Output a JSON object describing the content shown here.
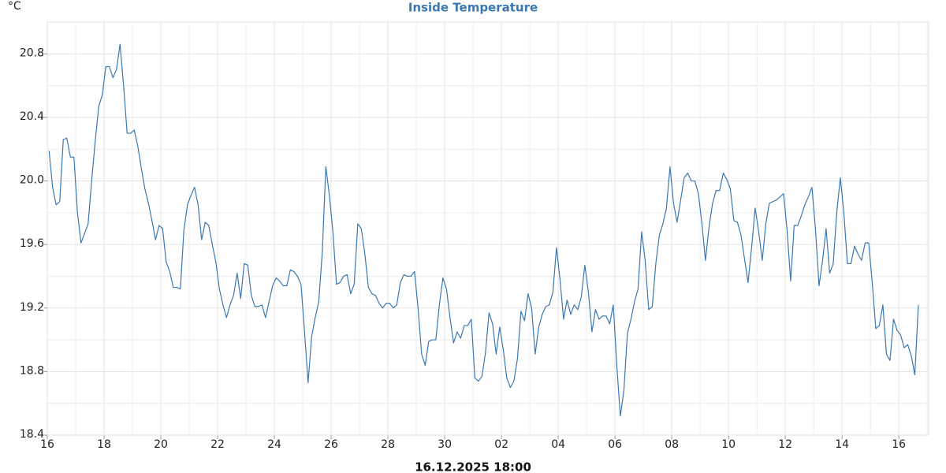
{
  "chart_data": {
    "type": "line",
    "title": "Inside Temperature",
    "y_label": "°C",
    "x_label": "16.12.2025 18:00",
    "color": "#3b78b1",
    "grid": true,
    "xlim": [
      0,
      31.05
    ],
    "ylim": [
      18.4,
      21.0
    ],
    "xticks": [
      {
        "value": 0,
        "label": "16"
      },
      {
        "value": 2,
        "label": "18"
      },
      {
        "value": 4,
        "label": "20"
      },
      {
        "value": 6,
        "label": "22"
      },
      {
        "value": 8,
        "label": "24"
      },
      {
        "value": 10,
        "label": "26"
      },
      {
        "value": 12,
        "label": "28"
      },
      {
        "value": 14,
        "label": "30"
      },
      {
        "value": 16,
        "label": "02"
      },
      {
        "value": 18,
        "label": "04"
      },
      {
        "value": 20,
        "label": "06"
      },
      {
        "value": 22,
        "label": "08"
      },
      {
        "value": 24,
        "label": "10"
      },
      {
        "value": 26,
        "label": "12"
      },
      {
        "value": 28,
        "label": "14"
      },
      {
        "value": 30,
        "label": "16"
      }
    ],
    "xminor": [
      1,
      3,
      5,
      7,
      9,
      11,
      13,
      15,
      17,
      19,
      21,
      23,
      25,
      27,
      29,
      31
    ],
    "yticks": [
      18.4,
      18.8,
      19.2,
      19.6,
      {
        "value": 20,
        "label": "20.0"
      },
      20.4,
      20.8
    ],
    "yminor": [
      18.6,
      19.0,
      19.4,
      19.8,
      20.2,
      20.6
    ],
    "x": [
      0.0625,
      0.1875,
      0.3125,
      0.4375,
      0.5625,
      0.6875,
      0.8125,
      0.9375,
      1.0625,
      1.1875,
      1.3125,
      1.4375,
      1.5625,
      1.6875,
      1.8125,
      1.9375,
      2.0625,
      2.1875,
      2.3125,
      2.4375,
      2.5625,
      2.6875,
      2.8125,
      2.9375,
      3.0625,
      3.1875,
      3.3125,
      3.4375,
      3.5625,
      3.6875,
      3.8125,
      3.9375,
      4.0625,
      4.1875,
      4.3125,
      4.4375,
      4.5625,
      4.6875,
      4.8125,
      4.9375,
      5.0625,
      5.1875,
      5.3125,
      5.4375,
      5.5625,
      5.6875,
      5.8125,
      5.9375,
      6.0625,
      6.1875,
      6.3125,
      6.4375,
      6.5625,
      6.6875,
      6.8125,
      6.9375,
      7.0625,
      7.1875,
      7.3125,
      7.4375,
      7.5625,
      7.6875,
      7.8125,
      7.9375,
      8.0625,
      8.1875,
      8.3125,
      8.4375,
      8.5625,
      8.6875,
      8.8125,
      8.9375,
      9.0625,
      9.1875,
      9.3125,
      9.4375,
      9.5625,
      9.6875,
      9.8125,
      9.9375,
      10.0625,
      10.1875,
      10.3125,
      10.4375,
      10.5625,
      10.6875,
      10.8125,
      10.9375,
      11.0625,
      11.1875,
      11.3125,
      11.4375,
      11.5625,
      11.6875,
      11.8125,
      11.9375,
      12.0625,
      12.1875,
      12.3125,
      12.4375,
      12.5625,
      12.6875,
      12.8125,
      12.9375,
      13.0625,
      13.1875,
      13.3125,
      13.4375,
      13.5625,
      13.6875,
      13.8125,
      13.9375,
      14.0625,
      14.1875,
      14.3125,
      14.4375,
      14.5625,
      14.6875,
      14.8125,
      14.9375,
      15.0625,
      15.1875,
      15.3125,
      15.4375,
      15.5625,
      15.6875,
      15.8125,
      15.9375,
      16.0625,
      16.1875,
      16.3125,
      16.4375,
      16.5625,
      16.6875,
      16.8125,
      16.9375,
      17.0625,
      17.1875,
      17.3125,
      17.4375,
      17.5625,
      17.6875,
      17.8125,
      17.9375,
      18.0625,
      18.1875,
      18.3125,
      18.4375,
      18.5625,
      18.6875,
      18.8125,
      18.9375,
      19.0625,
      19.1875,
      19.3125,
      19.4375,
      19.5625,
      19.6875,
      19.8125,
      19.9375,
      20.0625,
      20.1875,
      20.3125,
      20.4375,
      20.5625,
      20.6875,
      20.8125,
      20.9375,
      21.0625,
      21.1875,
      21.3125,
      21.4375,
      21.5625,
      21.6875,
      21.8125,
      21.9375,
      22.0625,
      22.1875,
      22.3125,
      22.4375,
      22.5625,
      22.6875,
      22.8125,
      22.9375,
      23.0625,
      23.1875,
      23.3125,
      23.4375,
      23.5625,
      23.6875,
      23.8125,
      23.9375,
      24.0625,
      24.1875,
      24.3125,
      24.4375,
      24.5625,
      24.6875,
      24.8125,
      24.9375,
      25.0625,
      25.1875,
      25.3125,
      25.4375,
      25.5625,
      25.6875,
      25.8125,
      25.9375,
      26.0625,
      26.1875,
      26.3125,
      26.4375,
      26.5625,
      26.6875,
      26.8125,
      26.9375,
      27.0625,
      27.1875,
      27.3125,
      27.4375,
      27.5625,
      27.6875,
      27.8125,
      27.9375,
      28.0625,
      28.1875,
      28.3125,
      28.4375,
      28.5625,
      28.6875,
      28.8125,
      28.9375,
      29.0625,
      29.1875,
      29.3125,
      29.4375,
      29.5625,
      29.6875,
      29.8125,
      29.9375,
      30.0625,
      30.1875,
      30.3125,
      30.4375,
      30.5625,
      30.6875
    ],
    "values": [
      20.19,
      19.96,
      19.85,
      19.87,
      20.26,
      20.27,
      20.15,
      20.15,
      19.8,
      19.61,
      19.67,
      19.73,
      20.0,
      20.25,
      20.47,
      20.54,
      20.72,
      20.72,
      20.65,
      20.7,
      20.86,
      20.6,
      20.3,
      20.3,
      20.32,
      20.22,
      20.08,
      19.95,
      19.86,
      19.75,
      19.63,
      19.72,
      19.7,
      19.49,
      19.43,
      19.33,
      19.33,
      19.32,
      19.69,
      19.85,
      19.91,
      19.96,
      19.85,
      19.63,
      19.74,
      19.72,
      19.6,
      19.49,
      19.32,
      19.22,
      19.14,
      19.22,
      19.28,
      19.42,
      19.26,
      19.48,
      19.47,
      19.28,
      19.21,
      19.21,
      19.22,
      19.14,
      19.24,
      19.34,
      19.39,
      19.37,
      19.34,
      19.34,
      19.44,
      19.43,
      19.4,
      19.35,
      19.05,
      18.73,
      19.02,
      19.14,
      19.24,
      19.55,
      20.09,
      19.91,
      19.68,
      19.35,
      19.36,
      19.4,
      19.41,
      19.29,
      19.35,
      19.73,
      19.7,
      19.54,
      19.33,
      19.29,
      19.28,
      19.23,
      19.2,
      19.23,
      19.23,
      19.2,
      19.22,
      19.36,
      19.41,
      19.4,
      19.4,
      19.43,
      19.2,
      18.91,
      18.84,
      18.99,
      19.0,
      19.0,
      19.22,
      19.39,
      19.32,
      19.14,
      18.98,
      19.05,
      19.01,
      19.09,
      19.09,
      19.13,
      18.76,
      18.74,
      18.77,
      18.92,
      19.17,
      19.1,
      18.91,
      19.08,
      18.94,
      18.76,
      18.7,
      18.74,
      18.88,
      19.18,
      19.12,
      19.29,
      19.2,
      18.91,
      19.08,
      19.16,
      19.21,
      19.22,
      19.3,
      19.58,
      19.38,
      19.13,
      19.25,
      19.16,
      19.22,
      19.19,
      19.27,
      19.47,
      19.3,
      19.05,
      19.19,
      19.13,
      19.15,
      19.15,
      19.1,
      19.22,
      18.84,
      18.52,
      18.68,
      19.04,
      19.13,
      19.24,
      19.32,
      19.68,
      19.5,
      19.19,
      19.21,
      19.48,
      19.66,
      19.73,
      19.83,
      20.09,
      19.86,
      19.74,
      19.88,
      20.02,
      20.05,
      20.0,
      20.0,
      19.92,
      19.73,
      19.5,
      19.71,
      19.86,
      19.94,
      19.94,
      20.05,
      20.01,
      19.95,
      19.75,
      19.74,
      19.66,
      19.51,
      19.36,
      19.58,
      19.83,
      19.68,
      19.5,
      19.73,
      19.86,
      19.87,
      19.88,
      19.9,
      19.92,
      19.69,
      19.37,
      19.72,
      19.72,
      19.78,
      19.85,
      19.9,
      19.96,
      19.7,
      19.34,
      19.5,
      19.7,
      19.42,
      19.48,
      19.8,
      20.02,
      19.8,
      19.48,
      19.48,
      19.59,
      19.54,
      19.5,
      19.61,
      19.61,
      19.36,
      19.07,
      19.09,
      19.22,
      18.91,
      18.87,
      19.13,
      19.06,
      19.03,
      18.95,
      18.97,
      18.9,
      18.78,
      19.22
    ]
  }
}
